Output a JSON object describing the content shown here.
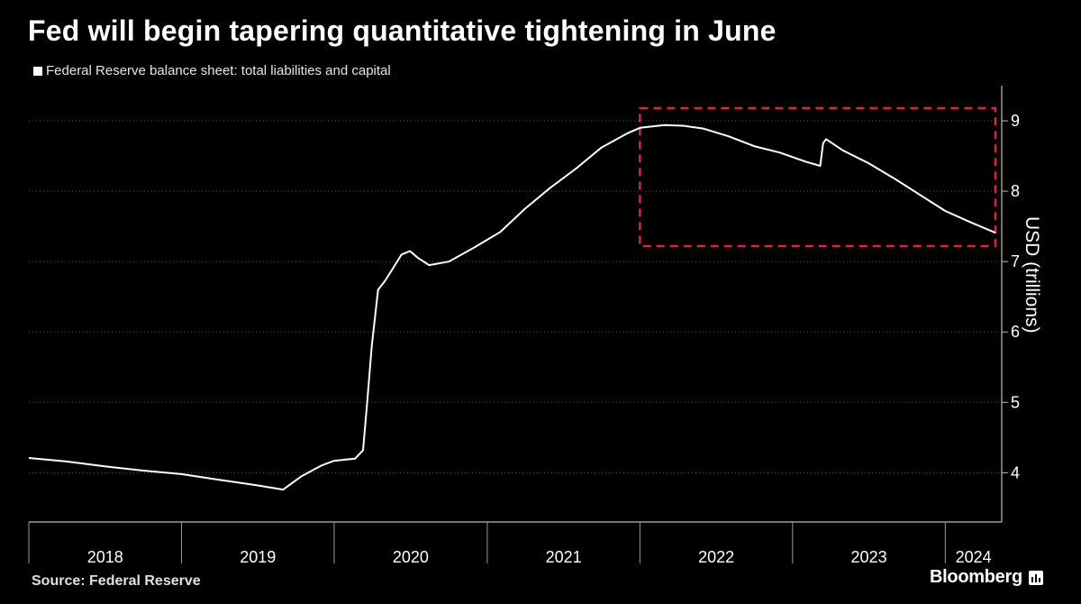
{
  "title": "Fed will begin tapering quantitative tightening in June",
  "legend_label": "Federal Reserve balance sheet: total liabilities and capital",
  "source": "Source: Federal Reserve",
  "brand": "Bloomberg",
  "colors": {
    "background": "#000000",
    "line": "#ffffff",
    "highlight": "#e8213a",
    "grid": "#555555"
  },
  "chart_data": {
    "type": "line",
    "title": "Fed will begin tapering quantitative tightening in June",
    "xlabel": "",
    "ylabel": "USD (trillions)",
    "ylim": [
      3.3,
      9.5
    ],
    "yticks": [
      4,
      5,
      6,
      7,
      8,
      9
    ],
    "xrange": [
      "2018-01-01",
      "2024-05-15"
    ],
    "x_tick_labels": [
      "2018",
      "2019",
      "2020",
      "2021",
      "2022",
      "2023",
      "2024"
    ],
    "grid": "horizontal dotted",
    "legend_position": "top-left",
    "highlight_box": {
      "x": [
        "2022-01-01",
        "2024-04-30"
      ],
      "y": [
        7.22,
        9.18
      ],
      "style": "dashed red"
    },
    "series": [
      {
        "name": "Federal Reserve balance sheet: total liabilities and capital",
        "x": [
          "2018-01-01",
          "2018-04-01",
          "2018-07-01",
          "2018-10-01",
          "2019-01-01",
          "2019-04-01",
          "2019-07-01",
          "2019-09-01",
          "2019-10-15",
          "2019-12-01",
          "2020-01-01",
          "2020-02-20",
          "2020-03-10",
          "2020-03-20",
          "2020-03-31",
          "2020-04-15",
          "2020-05-01",
          "2020-05-20",
          "2020-06-10",
          "2020-06-30",
          "2020-07-20",
          "2020-08-15",
          "2020-10-01",
          "2020-12-01",
          "2021-02-01",
          "2021-04-01",
          "2021-06-01",
          "2021-08-01",
          "2021-10-01",
          "2021-12-01",
          "2022-01-01",
          "2022-03-01",
          "2022-04-15",
          "2022-06-01",
          "2022-08-01",
          "2022-10-01",
          "2022-12-01",
          "2023-02-01",
          "2023-03-08",
          "2023-03-15",
          "2023-03-22",
          "2023-05-01",
          "2023-07-01",
          "2023-09-01",
          "2023-11-01",
          "2024-01-01",
          "2024-03-01",
          "2024-04-30"
        ],
        "values": [
          4.21,
          4.16,
          4.09,
          4.03,
          3.98,
          3.9,
          3.82,
          3.76,
          3.95,
          4.1,
          4.17,
          4.2,
          4.32,
          5.0,
          5.8,
          6.6,
          6.72,
          6.9,
          7.1,
          7.15,
          7.05,
          6.95,
          7.0,
          7.2,
          7.42,
          7.75,
          8.05,
          8.32,
          8.62,
          8.82,
          8.9,
          8.94,
          8.93,
          8.89,
          8.78,
          8.64,
          8.55,
          8.42,
          8.36,
          8.68,
          8.74,
          8.58,
          8.4,
          8.18,
          7.95,
          7.72,
          7.56,
          7.41
        ]
      }
    ]
  }
}
